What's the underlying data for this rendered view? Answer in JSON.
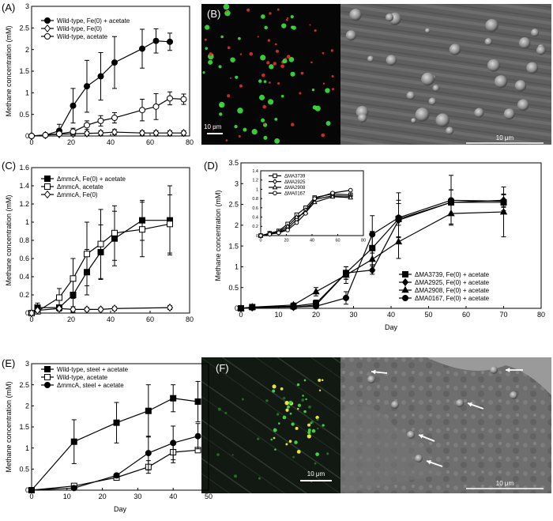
{
  "panels": {
    "A": {
      "label": "(A)"
    },
    "B": {
      "label": "(B)",
      "scale_left": "10 μm",
      "scale_right": "10 μm"
    },
    "C": {
      "label": "(C)"
    },
    "D": {
      "label": "(D)"
    },
    "E": {
      "label": "(E)"
    },
    "F": {
      "label": "(F)",
      "scale_left": "10 μm",
      "scale_right": "10 μm"
    }
  },
  "chart_data": [
    {
      "panel": "A",
      "type": "line",
      "xlabel": "",
      "ylabel": "Methane concentration (mM)",
      "xlim": [
        0,
        80
      ],
      "ylim": [
        0,
        3
      ],
      "xticks": [
        0,
        20,
        40,
        60,
        80
      ],
      "yticks": [
        0,
        0.5,
        1,
        1.5,
        2,
        2.5,
        3
      ],
      "legend_position": "top-left",
      "series": [
        {
          "name": "Wild-type, Fe(0) + acetate",
          "marker": "circle-filled",
          "x": [
            0,
            7,
            14,
            21,
            28,
            35,
            42,
            56,
            63,
            70
          ],
          "y": [
            0,
            0.02,
            0.12,
            0.7,
            1.15,
            1.38,
            1.7,
            2.02,
            2.2,
            2.18
          ],
          "err": [
            0.02,
            0.03,
            0.15,
            0.4,
            0.6,
            0.55,
            0.6,
            0.45,
            0.28,
            0.2
          ]
        },
        {
          "name": "Wild-type, Fe(0)",
          "marker": "diamond-open",
          "x": [
            0,
            7,
            14,
            21,
            28,
            35,
            42,
            56,
            63,
            70,
            77
          ],
          "y": [
            0,
            0.02,
            0.04,
            0.05,
            0.06,
            0.07,
            0.09,
            0.07,
            0.07,
            0.07,
            0.07
          ],
          "err": [
            0.01,
            0.02,
            0.03,
            0.04,
            0.04,
            0.05,
            0.06,
            0.05,
            0.05,
            0.05,
            0.05
          ]
        },
        {
          "name": "Wild-type, acetate",
          "marker": "circle-open",
          "x": [
            0,
            7,
            14,
            21,
            28,
            35,
            42,
            56,
            63,
            70,
            77
          ],
          "y": [
            0,
            0.02,
            0.05,
            0.1,
            0.25,
            0.35,
            0.42,
            0.6,
            0.68,
            0.87,
            0.85
          ],
          "err": [
            0.01,
            0.02,
            0.05,
            0.08,
            0.1,
            0.12,
            0.12,
            0.25,
            0.3,
            0.15,
            0.12
          ]
        }
      ]
    },
    {
      "panel": "C",
      "type": "line",
      "xlabel": "",
      "ylabel": "Methane concentration (mM)",
      "xlim": [
        0,
        80
      ],
      "ylim": [
        0,
        1.6
      ],
      "xticks": [
        0,
        20,
        40,
        60,
        80
      ],
      "yticks": [
        0,
        0.2,
        0.4,
        0.6,
        0.8,
        1,
        1.2,
        1.4,
        1.6
      ],
      "legend_position": "top-left",
      "series": [
        {
          "name": "ΔmmcA, Fe(0) + acetate",
          "marker": "square-filled",
          "x": [
            0,
            3,
            14,
            21,
            28,
            35,
            42,
            56,
            70
          ],
          "y": [
            0,
            0.06,
            0.06,
            0.2,
            0.45,
            0.67,
            0.82,
            1.02,
            1.02
          ],
          "err": [
            0.01,
            0.05,
            0.08,
            0.15,
            0.25,
            0.3,
            0.3,
            0.22,
            0.38
          ]
        },
        {
          "name": "ΔmmcA, acetate",
          "marker": "square-open",
          "x": [
            0,
            3,
            14,
            21,
            28,
            35,
            42,
            56,
            70
          ],
          "y": [
            0,
            0.02,
            0.17,
            0.38,
            0.65,
            0.76,
            0.88,
            0.92,
            0.98
          ],
          "err": [
            0.01,
            0.03,
            0.1,
            0.22,
            0.35,
            0.38,
            0.3,
            0.3,
            0.32
          ]
        },
        {
          "name": "ΔmmcA, Fe(0)",
          "marker": "diamond-open",
          "x": [
            0,
            3,
            14,
            21,
            28,
            35,
            42,
            70
          ],
          "y": [
            0,
            0.03,
            0.05,
            0.04,
            0.04,
            0.04,
            0.05,
            0.06
          ],
          "err": [
            0.01,
            0.02,
            0.03,
            0.03,
            0.02,
            0.02,
            0.02,
            0.02
          ]
        }
      ]
    },
    {
      "panel": "D",
      "type": "line",
      "xlabel": "Day",
      "ylabel": "Methane concentration (mM)",
      "xlim": [
        0,
        80
      ],
      "ylim": [
        0,
        3.5
      ],
      "xticks": [
        0,
        10,
        20,
        30,
        40,
        50,
        60,
        70,
        80
      ],
      "yticks": [
        0,
        0.5,
        1,
        1.5,
        2,
        2.5,
        3,
        3.5
      ],
      "legend_position": "center-right",
      "series": [
        {
          "name": "ΔMA3739, Fe(0) + acetate",
          "marker": "square-filled",
          "x": [
            0,
            3,
            14,
            20,
            28,
            35,
            42,
            56,
            70
          ],
          "y": [
            0,
            0.03,
            0.05,
            0.12,
            0.85,
            1.45,
            2.15,
            2.55,
            2.55
          ],
          "err": [
            0.01,
            0.02,
            0.03,
            0.08,
            0.15,
            0.4,
            0.45,
            0.3,
            0.2
          ]
        },
        {
          "name": "ΔMA2925, Fe(0) + acetate",
          "marker": "diamond-filled",
          "x": [
            0,
            3,
            14,
            20,
            28,
            35,
            42,
            56,
            70
          ],
          "y": [
            0,
            0.02,
            0.03,
            0.08,
            0.85,
            0.92,
            2.12,
            2.55,
            2.6
          ],
          "err": [
            0.01,
            0.02,
            0.03,
            0.06,
            0.15,
            0.1,
            0.4,
            0.3,
            0.15
          ]
        },
        {
          "name": "ΔMA2908, Fe(0) + acetate",
          "marker": "triangle-filled",
          "x": [
            0,
            3,
            14,
            20,
            28,
            35,
            42,
            56,
            70
          ],
          "y": [
            0,
            0.03,
            0.08,
            0.4,
            0.8,
            1.18,
            1.6,
            2.28,
            2.32
          ],
          "err": [
            0.01,
            0.02,
            0.05,
            0.1,
            0.2,
            0.3,
            0.4,
            0.25,
            0.6
          ]
        },
        {
          "name": "ΔMA0167, Fe(0) + acetate",
          "marker": "circle-filled",
          "x": [
            0,
            3,
            14,
            20,
            28,
            35,
            42,
            56,
            70
          ],
          "y": [
            0,
            0.02,
            0.03,
            0.05,
            0.25,
            1.78,
            2.18,
            2.6,
            2.58
          ],
          "err": [
            0.01,
            0.01,
            0.02,
            0.05,
            0.15,
            0.45,
            0.6,
            0.6,
            0.15
          ]
        }
      ],
      "inset": {
        "xlim": [
          0,
          80
        ],
        "ylim": [
          0,
          1.4
        ],
        "xticks": [
          0,
          20,
          40,
          60,
          80
        ],
        "yticks": [
          0,
          0.2,
          0.4,
          0.6,
          0.8,
          1,
          1.2,
          1.4
        ],
        "legend_position": "top-left",
        "series": [
          {
            "name": "ΔMA3739",
            "marker": "square-open",
            "x": [
              0,
              7,
              14,
              21,
              28,
              35,
              42,
              56,
              70
            ],
            "y": [
              0,
              0.05,
              0.1,
              0.25,
              0.45,
              0.6,
              0.82,
              0.9,
              0.88
            ]
          },
          {
            "name": "ΔMA2925",
            "marker": "diamond-open",
            "x": [
              0,
              7,
              14,
              21,
              28,
              35,
              42,
              56,
              70
            ],
            "y": [
              0,
              0.04,
              0.07,
              0.15,
              0.35,
              0.55,
              0.78,
              0.86,
              0.85
            ]
          },
          {
            "name": "ΔMA2908",
            "marker": "triangle-open",
            "x": [
              0,
              7,
              14,
              21,
              28,
              35,
              42,
              56,
              70
            ],
            "y": [
              0,
              0.04,
              0.08,
              0.2,
              0.4,
              0.5,
              0.72,
              0.84,
              0.82
            ]
          },
          {
            "name": "ΔMA0167",
            "marker": "circle-open",
            "x": [
              0,
              7,
              14,
              21,
              28,
              35,
              42,
              56,
              70
            ],
            "y": [
              0,
              0.03,
              0.06,
              0.12,
              0.28,
              0.48,
              0.8,
              0.92,
              0.98
            ]
          }
        ]
      }
    },
    {
      "panel": "E",
      "type": "line",
      "xlabel": "Day",
      "ylabel": "Methane concentration (mM)",
      "xlim": [
        0,
        50
      ],
      "ylim": [
        0,
        3
      ],
      "xticks": [
        0,
        10,
        20,
        30,
        40,
        50
      ],
      "yticks": [
        0,
        0.5,
        1,
        1.5,
        2,
        2.5,
        3
      ],
      "legend_position": "top-left",
      "series": [
        {
          "name": "Wild-type, steel + acetate",
          "marker": "square-filled",
          "x": [
            0,
            12,
            24,
            33,
            40,
            47
          ],
          "y": [
            0,
            1.15,
            1.6,
            1.88,
            2.18,
            2.1
          ],
          "err": [
            0.01,
            0.52,
            0.48,
            0.62,
            0.32,
            0.48
          ]
        },
        {
          "name": "Wild-type, acetate",
          "marker": "square-open",
          "x": [
            0,
            12,
            24,
            33,
            40,
            47
          ],
          "y": [
            0,
            0.1,
            0.3,
            0.55,
            0.9,
            0.95
          ],
          "err": [
            0.01,
            0.05,
            0.05,
            0.15,
            0.25,
            0.05
          ]
        },
        {
          "name": "ΔmmcA, steel + acetate",
          "marker": "circle-filled",
          "x": [
            0,
            12,
            24,
            33,
            40,
            47
          ],
          "y": [
            0,
            0.05,
            0.35,
            0.88,
            1.12,
            1.28
          ],
          "err": [
            0.01,
            0.05,
            0.05,
            0.4,
            0.4,
            0.3
          ]
        }
      ]
    }
  ]
}
